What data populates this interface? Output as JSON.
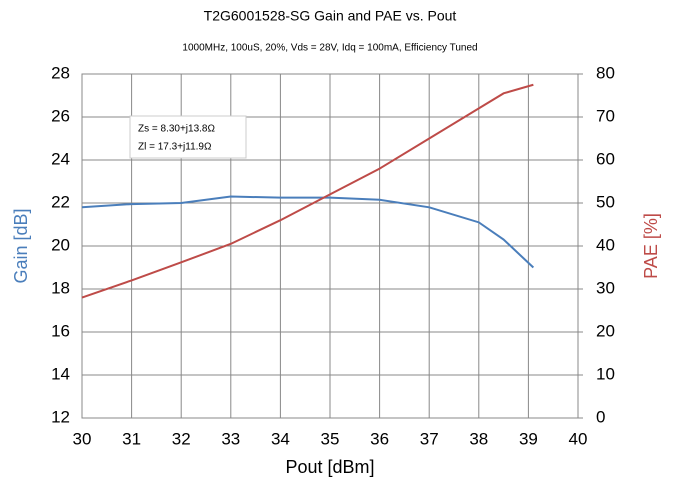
{
  "chart_data": {
    "type": "line",
    "title": "T2G6001528-SG Gain and PAE vs. Pout",
    "subtitle": "1000MHz, 100uS, 20%, Vds = 28V, Idq = 100mA, Efficiency Tuned",
    "xlabel": "Pout [dBm]",
    "ylabel": "Gain [dB]",
    "y2label": "PAE [%]",
    "annotations": [
      "Zs = 8.30+j13.8Ω",
      "Zl = 17.3+j11.9Ω"
    ],
    "x": [
      30,
      31,
      32,
      33,
      34,
      35,
      36,
      37,
      38,
      38.5,
      39.1
    ],
    "series": [
      {
        "name": "Gain",
        "color": "#4a7ebb",
        "values": [
          21.8,
          21.95,
          22.0,
          22.3,
          22.25,
          22.25,
          22.15,
          21.8,
          21.1,
          20.3,
          19.0
        ]
      },
      {
        "name": "PAE",
        "color": "#be4b48",
        "axis": "y2",
        "values": [
          28,
          32,
          36.2,
          40.5,
          46,
          52,
          58,
          65,
          72,
          75.5,
          77.5
        ]
      }
    ],
    "xlim": [
      30,
      40
    ],
    "xticks": [
      30,
      31,
      32,
      33,
      34,
      35,
      36,
      37,
      38,
      39,
      40
    ],
    "ylim": [
      12,
      28
    ],
    "yticks": [
      12,
      14,
      16,
      18,
      20,
      22,
      24,
      26,
      28
    ],
    "y2lim": [
      0,
      80
    ],
    "y2ticks": [
      0,
      10,
      20,
      30,
      40,
      50,
      60,
      70,
      80
    ],
    "grid": true
  }
}
